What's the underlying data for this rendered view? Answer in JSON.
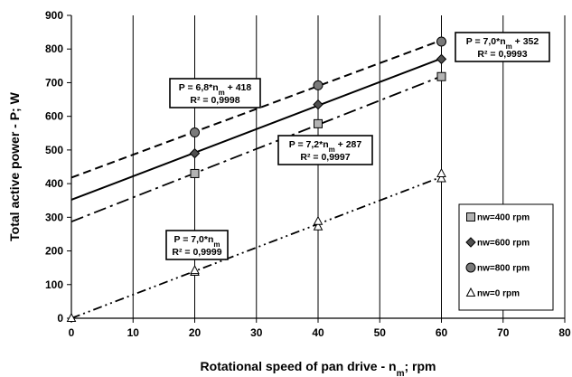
{
  "chart_data": {
    "type": "scatter",
    "xlabel": "Rotational speed of pan drive - n",
    "xlabel_sub": "m",
    "xlabel_tail": "; rpm",
    "ylabel": "Total active power -  P; W",
    "xlim": [
      0,
      80
    ],
    "ylim": [
      0,
      900
    ],
    "x_ticks": [
      0,
      10,
      20,
      30,
      40,
      50,
      60,
      70,
      80
    ],
    "y_ticks": [
      0,
      100,
      200,
      300,
      400,
      500,
      600,
      700,
      800,
      900
    ],
    "grid": "vertical",
    "legend_position": "right",
    "series": [
      {
        "name": "nw=400 rpm",
        "marker": "square",
        "color": "#b3b3b3",
        "x": [
          20,
          40,
          60
        ],
        "y": [
          430,
          578,
          718
        ],
        "fit": {
          "slope": 7.2,
          "intercept": 287,
          "line": "dash-dot",
          "eq_parts": [
            "P = 7,2*n",
            "m",
            " + 287"
          ],
          "r2": "R² = 0,9997"
        }
      },
      {
        "name": "nw=600 rpm",
        "marker": "diamond",
        "color": "#505050",
        "x": [
          20,
          40,
          60
        ],
        "y": [
          490,
          635,
          770
        ],
        "fit": {
          "slope": 7.0,
          "intercept": 352,
          "line": "solid",
          "eq_parts": [
            "P = 7,0*n",
            "m",
            " + 352"
          ],
          "r2": "R² = 0,9993"
        }
      },
      {
        "name": "nw=800 rpm",
        "marker": "circle",
        "color": "#7a7a7a",
        "x": [
          20,
          40,
          60
        ],
        "y": [
          552,
          692,
          822
        ],
        "fit": {
          "slope": 6.8,
          "intercept": 418,
          "line": "dashed",
          "eq_parts": [
            "P = 6,8*n",
            "m",
            " + 418"
          ],
          "r2": "R² = 0,9998"
        }
      },
      {
        "name": "nw=0 rpm",
        "marker": "triangle",
        "color": "#ffffff",
        "x": [
          0,
          20,
          20,
          40,
          40,
          60,
          60
        ],
        "y": [
          0,
          137,
          142,
          272,
          288,
          415,
          430
        ],
        "fit": {
          "slope": 7.0,
          "intercept": 0,
          "line": "dash-dot-dot",
          "eq_parts": [
            "P = 7,0*n",
            "m",
            ""
          ],
          "r2": "R² = 0,9999"
        }
      }
    ]
  }
}
